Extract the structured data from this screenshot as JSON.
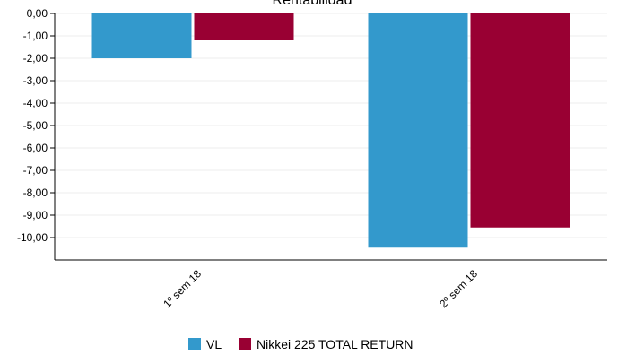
{
  "chart_data": {
    "type": "bar",
    "title": "Rentabilidad",
    "categories": [
      "1º sem 18",
      "2º sem 18"
    ],
    "series": [
      {
        "name": "VL",
        "values": [
          -2.0,
          -10.45
        ],
        "color": "#3399cc"
      },
      {
        "name": "Nikkei 225 TOTAL RETURN",
        "values": [
          -1.2,
          -9.55
        ],
        "color": "#990033"
      }
    ],
    "yticks": [
      "0,00",
      "-1,00",
      "-2,00",
      "-3,00",
      "-4,00",
      "-5,00",
      "-6,00",
      "-7,00",
      "-8,00",
      "-9,00",
      "-10,00"
    ],
    "ylim": [
      -11,
      0
    ],
    "grid": true,
    "legend_position": "bottom"
  }
}
